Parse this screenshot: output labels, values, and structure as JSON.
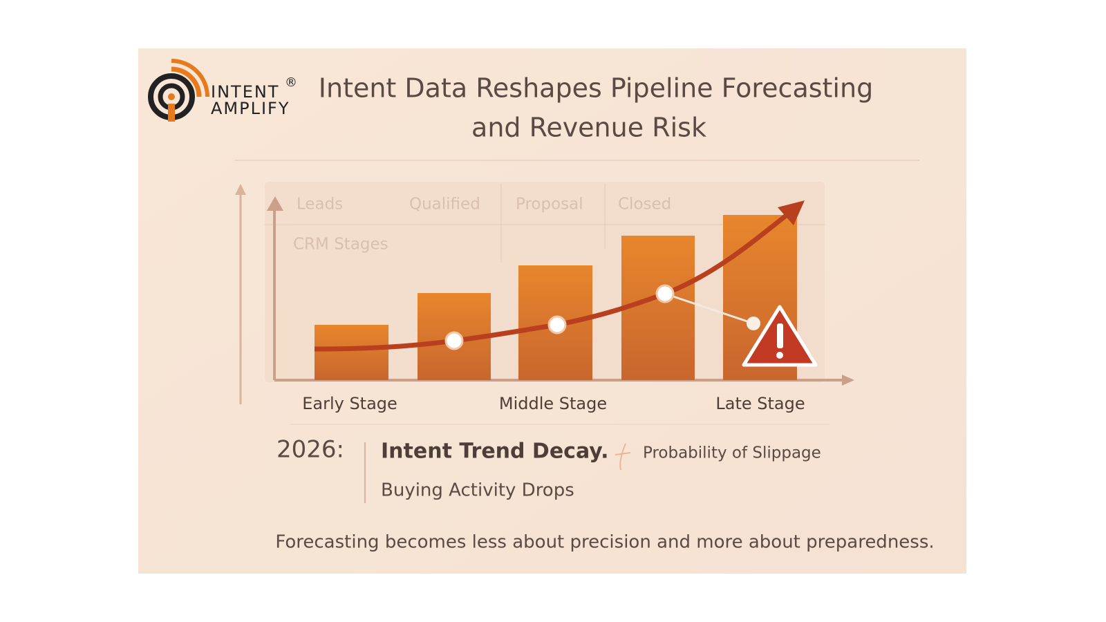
{
  "logo": {
    "line1": "INTENT",
    "line2": "AMPLIFY",
    "mark": "®"
  },
  "title": {
    "line1": "Intent Data Reshapes Pipeline Forecasting",
    "line2": "and Revenue Risk"
  },
  "chart": {
    "header_labels": [
      "Leads",
      "Qualified",
      "Proposal",
      "Closed"
    ],
    "axis_caption": "CRM Stages",
    "stage_labels": [
      "Early Stage",
      "Middle Stage",
      "Late Stage"
    ]
  },
  "legend": {
    "year": "2026:",
    "headline": "Intent Trend Decay.",
    "note": "Probability of Slippage",
    "subline": "Buying Activity Drops"
  },
  "footer": "Forecasting becomes less about precision and more about preparedness."
}
